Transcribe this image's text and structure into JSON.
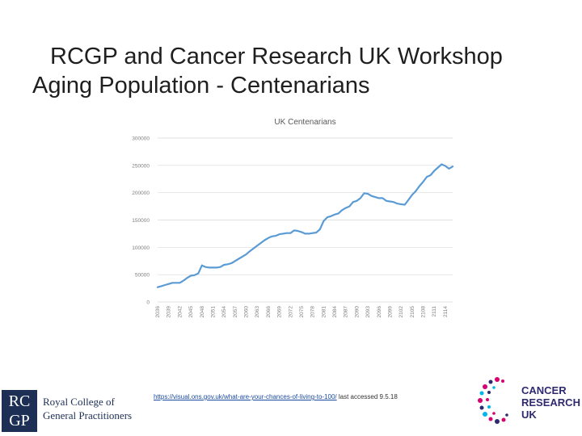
{
  "title": {
    "line1": "RCGP and Cancer Research UK Workshop",
    "line2": "Aging Population - Centenarians"
  },
  "footer": {
    "url": "https://visual.ons.gov.uk/what-are-your-chances-of-living-to-100/",
    "accessed": " last accessed 9.5.18"
  },
  "logos": {
    "rcgp_box": "RC GP",
    "rcgp_line1": "Royal College of",
    "rcgp_line2": "General Practitioners",
    "cruk_line1": "CANCER",
    "cruk_line2": "RESEARCH",
    "cruk_line3": "UK"
  },
  "colors": {
    "series": "#5b9bd5",
    "grid": "#d9d9d9",
    "axis_text": "#7f7f7f",
    "rcgp_navy": "#1d2f55",
    "cruk_navy": "#2e2a6f"
  },
  "chart_data": {
    "type": "line",
    "title": "UK Centenarians",
    "xlabel": "",
    "ylabel": "",
    "ylim": [
      0,
      300000
    ],
    "yticks": [
      0,
      50000,
      100000,
      150000,
      200000,
      250000,
      300000
    ],
    "xticks": [
      "2036",
      "2039",
      "2042",
      "2045",
      "2048",
      "2051",
      "2054",
      "2057",
      "2060",
      "2063",
      "2066",
      "2069",
      "2072",
      "2075",
      "2078",
      "2081",
      "2084",
      "2087",
      "2090",
      "2093",
      "2096",
      "2099",
      "2102",
      "2105",
      "2108",
      "2111",
      "2114"
    ],
    "grid": true,
    "legend": "none",
    "series": [
      {
        "x": [
          2036,
          2037,
          2038,
          2039,
          2040,
          2041,
          2042,
          2043,
          2044,
          2045,
          2046,
          2047,
          2048,
          2049,
          2050,
          2051,
          2052,
          2053,
          2054,
          2055,
          2056,
          2057,
          2058,
          2059,
          2060,
          2061,
          2062,
          2063,
          2064,
          2065,
          2066,
          2067,
          2068,
          2069,
          2070,
          2071,
          2072,
          2073,
          2074,
          2075,
          2076,
          2077,
          2078,
          2079,
          2080,
          2081,
          2082,
          2083,
          2084,
          2085,
          2086,
          2087,
          2088,
          2089,
          2090,
          2091,
          2092,
          2093,
          2094,
          2095,
          2096,
          2097,
          2098,
          2099,
          2100,
          2101,
          2102,
          2103,
          2104,
          2105,
          2106,
          2107,
          2108,
          2109,
          2110,
          2111,
          2112,
          2113,
          2114,
          2115,
          2116
        ],
        "y": [
          27000,
          29000,
          31000,
          33000,
          35000,
          35000,
          35000,
          39000,
          44000,
          48000,
          49000,
          52000,
          67000,
          64000,
          63000,
          63000,
          63000,
          64000,
          68000,
          69000,
          71000,
          75000,
          79000,
          83000,
          87000,
          93000,
          98000,
          103000,
          108000,
          113000,
          117000,
          120000,
          121000,
          124000,
          125000,
          126000,
          126000,
          131000,
          130000,
          128000,
          125000,
          125000,
          126000,
          127000,
          133000,
          148000,
          155000,
          157000,
          160000,
          162000,
          168000,
          172000,
          175000,
          183000,
          185000,
          190000,
          199000,
          198000,
          194000,
          192000,
          190000,
          190000,
          185000,
          184000,
          183000,
          180000,
          179000,
          178000,
          187000,
          196000,
          203000,
          212000,
          220000,
          229000,
          232000,
          240000,
          246000,
          252000,
          249000,
          244000,
          248000
        ]
      }
    ]
  }
}
